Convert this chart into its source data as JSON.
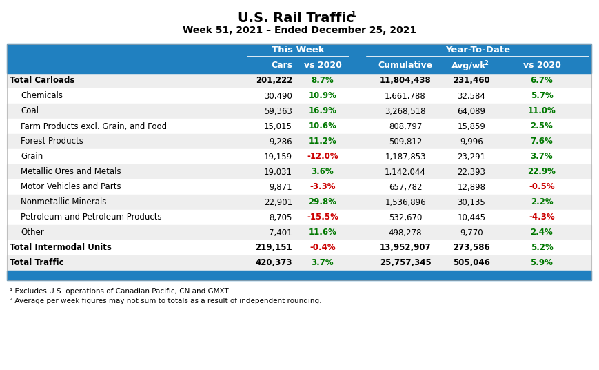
{
  "title_line1": "U.S. Rail Traffic",
  "title_sup1": "1",
  "title_line2": "Week 51, 2021 – Ended December 25, 2021",
  "header_group1": "This Week",
  "header_group2": "Year-To-Date",
  "rows": [
    {
      "label": "Total Carloads",
      "bold": true,
      "indent": false,
      "cars": "201,222",
      "vs2020_week": "8.7%",
      "vs2020_week_color": "green",
      "cumulative": "11,804,438",
      "avgwk": "231,460",
      "vs2020_ytd": "6.7%",
      "vs2020_ytd_color": "green",
      "bg": "#eeeeee"
    },
    {
      "label": "Chemicals",
      "bold": false,
      "indent": true,
      "cars": "30,490",
      "vs2020_week": "10.9%",
      "vs2020_week_color": "green",
      "cumulative": "1,661,788",
      "avgwk": "32,584",
      "vs2020_ytd": "5.7%",
      "vs2020_ytd_color": "green",
      "bg": "#ffffff"
    },
    {
      "label": "Coal",
      "bold": false,
      "indent": true,
      "cars": "59,363",
      "vs2020_week": "16.9%",
      "vs2020_week_color": "green",
      "cumulative": "3,268,518",
      "avgwk": "64,089",
      "vs2020_ytd": "11.0%",
      "vs2020_ytd_color": "green",
      "bg": "#eeeeee"
    },
    {
      "label": "Farm Products excl. Grain, and Food",
      "bold": false,
      "indent": true,
      "cars": "15,015",
      "vs2020_week": "10.6%",
      "vs2020_week_color": "green",
      "cumulative": "808,797",
      "avgwk": "15,859",
      "vs2020_ytd": "2.5%",
      "vs2020_ytd_color": "green",
      "bg": "#ffffff"
    },
    {
      "label": "Forest Products",
      "bold": false,
      "indent": true,
      "cars": "9,286",
      "vs2020_week": "11.2%",
      "vs2020_week_color": "green",
      "cumulative": "509,812",
      "avgwk": "9,996",
      "vs2020_ytd": "7.6%",
      "vs2020_ytd_color": "green",
      "bg": "#eeeeee"
    },
    {
      "label": "Grain",
      "bold": false,
      "indent": true,
      "cars": "19,159",
      "vs2020_week": "-12.0%",
      "vs2020_week_color": "red",
      "cumulative": "1,187,853",
      "avgwk": "23,291",
      "vs2020_ytd": "3.7%",
      "vs2020_ytd_color": "green",
      "bg": "#ffffff"
    },
    {
      "label": "Metallic Ores and Metals",
      "bold": false,
      "indent": true,
      "cars": "19,031",
      "vs2020_week": "3.6%",
      "vs2020_week_color": "green",
      "cumulative": "1,142,044",
      "avgwk": "22,393",
      "vs2020_ytd": "22.9%",
      "vs2020_ytd_color": "green",
      "bg": "#eeeeee"
    },
    {
      "label": "Motor Vehicles and Parts",
      "bold": false,
      "indent": true,
      "cars": "9,871",
      "vs2020_week": "-3.3%",
      "vs2020_week_color": "red",
      "cumulative": "657,782",
      "avgwk": "12,898",
      "vs2020_ytd": "-0.5%",
      "vs2020_ytd_color": "red",
      "bg": "#ffffff"
    },
    {
      "label": "Nonmetallic Minerals",
      "bold": false,
      "indent": true,
      "cars": "22,901",
      "vs2020_week": "29.8%",
      "vs2020_week_color": "green",
      "cumulative": "1,536,896",
      "avgwk": "30,135",
      "vs2020_ytd": "2.2%",
      "vs2020_ytd_color": "green",
      "bg": "#eeeeee"
    },
    {
      "label": "Petroleum and Petroleum Products",
      "bold": false,
      "indent": true,
      "cars": "8,705",
      "vs2020_week": "-15.5%",
      "vs2020_week_color": "red",
      "cumulative": "532,670",
      "avgwk": "10,445",
      "vs2020_ytd": "-4.3%",
      "vs2020_ytd_color": "red",
      "bg": "#ffffff"
    },
    {
      "label": "Other",
      "bold": false,
      "indent": true,
      "cars": "7,401",
      "vs2020_week": "11.6%",
      "vs2020_week_color": "green",
      "cumulative": "498,278",
      "avgwk": "9,770",
      "vs2020_ytd": "2.4%",
      "vs2020_ytd_color": "green",
      "bg": "#eeeeee"
    },
    {
      "label": "Total Intermodal Units",
      "bold": true,
      "indent": false,
      "cars": "219,151",
      "vs2020_week": "-0.4%",
      "vs2020_week_color": "red",
      "cumulative": "13,952,907",
      "avgwk": "273,586",
      "vs2020_ytd": "5.2%",
      "vs2020_ytd_color": "green",
      "bg": "#ffffff"
    },
    {
      "label": "Total Traffic",
      "bold": true,
      "indent": false,
      "cars": "420,373",
      "vs2020_week": "3.7%",
      "vs2020_week_color": "green",
      "cumulative": "25,757,345",
      "avgwk": "505,046",
      "vs2020_ytd": "5.9%",
      "vs2020_ytd_color": "green",
      "bg": "#eeeeee"
    }
  ],
  "footnote1": "¹ Excludes U.S. operations of Canadian Pacific, CN and GMXT.",
  "footnote2": "² Average per week figures may not sum to totals as a result of independent rounding.",
  "header_bg": "#2080c0",
  "green_color": "#007700",
  "red_color": "#cc0000",
  "fig_width": 8.69,
  "fig_height": 5.36,
  "dpi": 100
}
